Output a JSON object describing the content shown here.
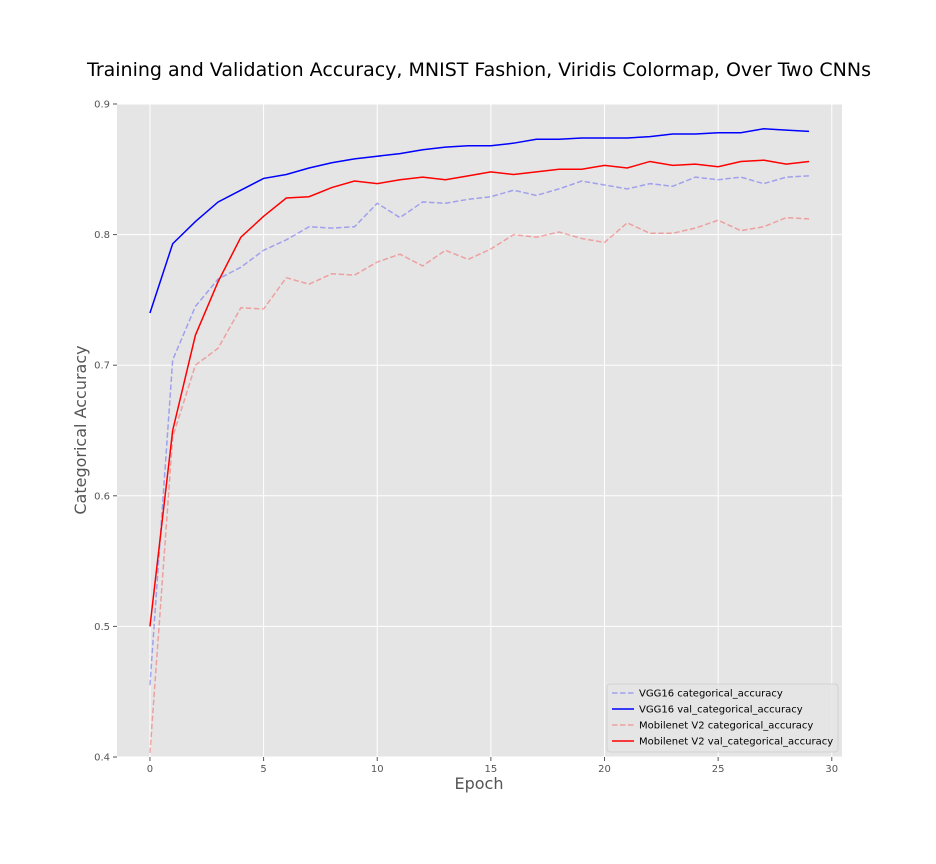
{
  "chart_data": {
    "type": "line",
    "title": "Training and Validation Accuracy, MNIST Fashion, Viridis Colormap, Over Two CNNs",
    "xlabel": "Epoch",
    "ylabel": "Categorical Accuracy",
    "xlim": [
      -1.45,
      30.45
    ],
    "ylim": [
      0.4,
      0.9
    ],
    "xticks": [
      0,
      5,
      10,
      15,
      20,
      25,
      30
    ],
    "yticks": [
      0.4,
      0.5,
      0.6,
      0.7,
      0.8,
      0.9
    ],
    "xtick_labels": [
      "0",
      "5",
      "10",
      "15",
      "20",
      "25",
      "30"
    ],
    "ytick_labels": [
      "0.4",
      "0.5",
      "0.6",
      "0.7",
      "0.8",
      "0.9"
    ],
    "grid": true,
    "legend_position": "lower-right",
    "x": [
      0,
      1,
      2,
      3,
      4,
      5,
      6,
      7,
      8,
      9,
      10,
      11,
      12,
      13,
      14,
      15,
      16,
      17,
      18,
      19,
      20,
      21,
      22,
      23,
      24,
      25,
      26,
      27,
      28,
      29
    ],
    "series": [
      {
        "name": "VGG16 categorical_accuracy",
        "color": "#0000ff",
        "style": "dashed",
        "opacity": 0.3,
        "values": [
          0.455,
          0.704,
          0.745,
          0.766,
          0.775,
          0.788,
          0.796,
          0.806,
          0.805,
          0.806,
          0.824,
          0.813,
          0.825,
          0.824,
          0.827,
          0.829,
          0.834,
          0.83,
          0.835,
          0.841,
          0.838,
          0.835,
          0.839,
          0.837,
          0.844,
          0.842,
          0.844,
          0.839,
          0.844,
          0.845
        ]
      },
      {
        "name": "VGG16 val_categorical_accuracy",
        "color": "#0000ff",
        "style": "solid",
        "opacity": 1,
        "values": [
          0.74,
          0.793,
          0.81,
          0.825,
          0.834,
          0.843,
          0.846,
          0.851,
          0.855,
          0.858,
          0.86,
          0.862,
          0.865,
          0.867,
          0.868,
          0.868,
          0.87,
          0.873,
          0.873,
          0.874,
          0.874,
          0.874,
          0.875,
          0.877,
          0.877,
          0.878,
          0.878,
          0.881,
          0.88,
          0.879
        ]
      },
      {
        "name": "Mobilenet V2 categorical_accuracy",
        "color": "#ff0000",
        "style": "dashed",
        "opacity": 0.3,
        "values": [
          0.403,
          0.645,
          0.7,
          0.713,
          0.744,
          0.743,
          0.767,
          0.762,
          0.77,
          0.769,
          0.779,
          0.785,
          0.776,
          0.788,
          0.781,
          0.789,
          0.8,
          0.798,
          0.802,
          0.797,
          0.794,
          0.809,
          0.801,
          0.801,
          0.805,
          0.811,
          0.803,
          0.806,
          0.813,
          0.812
        ]
      },
      {
        "name": "Mobilenet V2 val_categorical_accuracy",
        "color": "#ff0000",
        "style": "solid",
        "opacity": 1,
        "values": [
          0.5,
          0.65,
          0.723,
          0.764,
          0.798,
          0.814,
          0.828,
          0.829,
          0.836,
          0.841,
          0.839,
          0.842,
          0.844,
          0.842,
          0.845,
          0.848,
          0.846,
          0.848,
          0.85,
          0.85,
          0.853,
          0.851,
          0.856,
          0.853,
          0.854,
          0.852,
          0.856,
          0.857,
          0.854,
          0.856
        ]
      }
    ]
  }
}
